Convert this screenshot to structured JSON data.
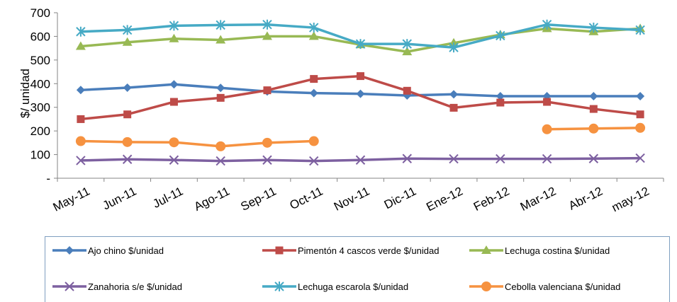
{
  "chart_data": {
    "type": "line",
    "ylabel": "$/ unidad",
    "ylim": [
      0,
      700
    ],
    "yticks": [
      {
        "value": 0,
        "label": "-"
      },
      {
        "value": 100,
        "label": "100"
      },
      {
        "value": 200,
        "label": "200"
      },
      {
        "value": 300,
        "label": "300"
      },
      {
        "value": 400,
        "label": "400"
      },
      {
        "value": 500,
        "label": "500"
      },
      {
        "value": 600,
        "label": "600"
      },
      {
        "value": 700,
        "label": "700"
      }
    ],
    "categories": [
      "May-11",
      "Jun-11",
      "Jul-11",
      "Ago-11",
      "Sep-11",
      "Oct-11",
      "Nov-11",
      "Dic-11",
      "Ene-12",
      "Feb-12",
      "Mar-12",
      "Abr-12",
      "may-12"
    ],
    "grid": false,
    "legend_position": "bottom",
    "series": [
      {
        "name": "Ajo chino  $/unidad",
        "color": "#4a7ebb",
        "marker": "diamond",
        "values": [
          373,
          383,
          397,
          382,
          367,
          360,
          357,
          350,
          355,
          347,
          347,
          347,
          347
        ]
      },
      {
        "name": "Pimentón 4 cascos verde  $/unidad",
        "color": "#be4b48",
        "marker": "square",
        "values": [
          250,
          270,
          323,
          340,
          372,
          420,
          432,
          370,
          298,
          320,
          323,
          293,
          270
        ]
      },
      {
        "name": "Lechuga costina  $/unidad",
        "color": "#98b954",
        "marker": "triangle",
        "values": [
          558,
          575,
          590,
          585,
          600,
          600,
          565,
          535,
          572,
          607,
          633,
          620,
          633
        ]
      },
      {
        "name": "Zanahoria s/e  $/unidad",
        "color": "#7d60a0",
        "marker": "x",
        "values": [
          75,
          80,
          77,
          73,
          77,
          73,
          77,
          83,
          82,
          82,
          82,
          83,
          85
        ]
      },
      {
        "name": "Lechuga escarola  $/unidad",
        "color": "#46aac5",
        "marker": "star",
        "values": [
          620,
          627,
          645,
          648,
          650,
          637,
          568,
          568,
          553,
          603,
          650,
          637,
          627
        ]
      },
      {
        "name": "Cebolla valenciana  $/unidad",
        "color": "#f69240",
        "marker": "circle",
        "values": [
          157,
          153,
          152,
          135,
          150,
          157,
          null,
          null,
          null,
          null,
          207,
          210,
          213
        ]
      }
    ]
  }
}
